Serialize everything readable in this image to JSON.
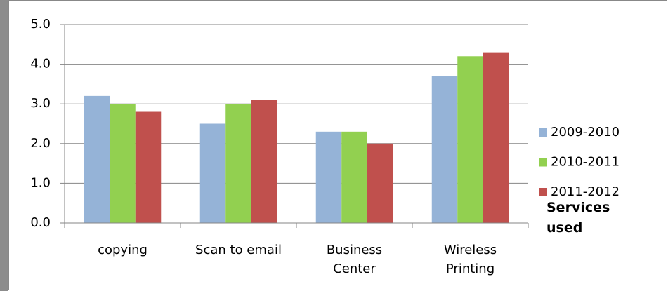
{
  "chart_data": {
    "type": "bar",
    "categories": [
      "copying",
      "Scan to email",
      "Business Center",
      "Wireless Printing"
    ],
    "series": [
      {
        "name": "2009-2010",
        "color": "#95b3d7",
        "values": [
          3.2,
          2.5,
          2.3,
          3.7
        ]
      },
      {
        "name": "2010-2011",
        "color": "#92d050",
        "values": [
          3.0,
          3.0,
          2.3,
          4.2
        ]
      },
      {
        "name": "2011-2012",
        "color": "#c0504d",
        "values": [
          2.8,
          3.1,
          2.0,
          4.3
        ]
      }
    ],
    "legend_title": "Services used",
    "ylim": [
      0,
      5
    ],
    "yticks": [
      {
        "value": 0,
        "label": "0.0"
      },
      {
        "value": 1,
        "label": "1.0"
      },
      {
        "value": 2,
        "label": "2.0"
      },
      {
        "value": 3,
        "label": "3.0"
      },
      {
        "value": 4,
        "label": "4.0"
      },
      {
        "value": 5,
        "label": "5.0"
      }
    ],
    "grid": true,
    "legend": "right"
  }
}
